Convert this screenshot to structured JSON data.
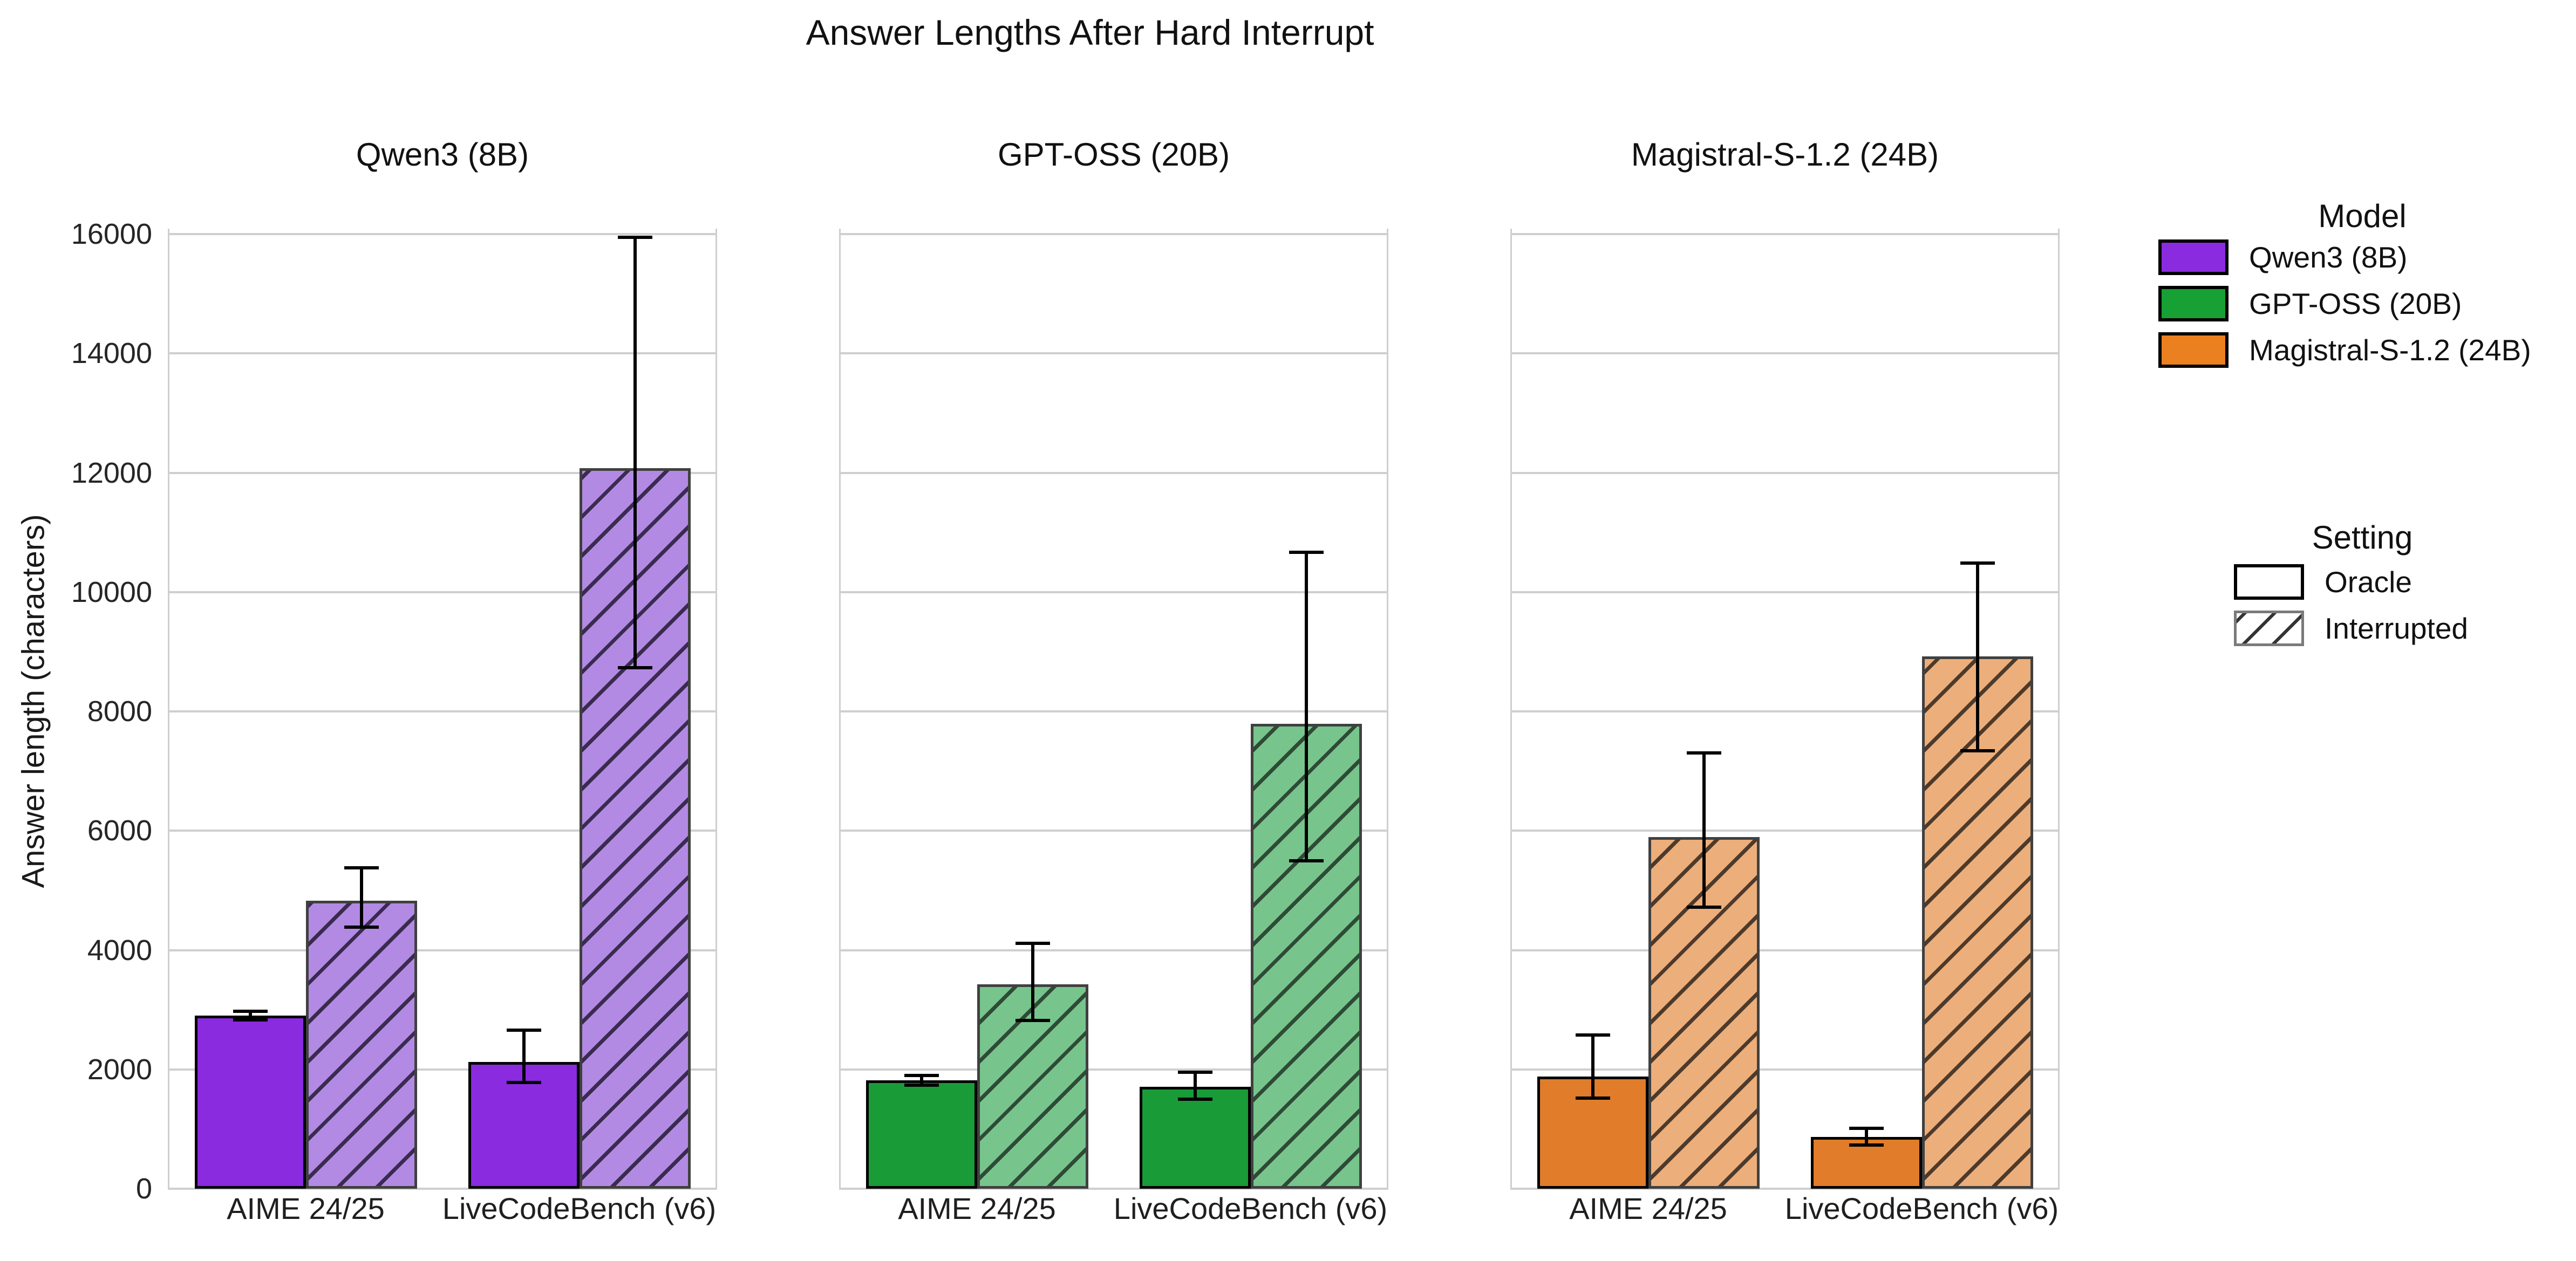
{
  "title": "Answer Lengths After Hard Interrupt",
  "ylabel": "Answer length (characters)",
  "legend": {
    "model_title": "Model",
    "models": [
      {
        "label": "Qwen3 (8B)",
        "color": "#8a2be0"
      },
      {
        "label": "GPT-OSS (20B)",
        "color": "#17a033"
      },
      {
        "label": "Magistral-S-1.2 (24B)",
        "color": "#ea8020"
      }
    ],
    "setting_title": "Setting",
    "settings": [
      {
        "label": "Oracle",
        "hatched": false
      },
      {
        "label": "Interrupted",
        "hatched": true
      }
    ]
  },
  "chart_data": {
    "type": "bar",
    "title": "Answer Lengths After Hard Interrupt",
    "ylabel": "Answer length (characters)",
    "ylim": [
      0,
      16000
    ],
    "ytick_step": 2000,
    "grid": "horizontal",
    "legend_position": "right",
    "categories": [
      "AIME 24/25",
      "LiveCodeBench (v6)"
    ],
    "settings": [
      "Oracle",
      "Interrupted"
    ],
    "panels": [
      {
        "title": "Qwen3 (8B)",
        "solid": "#8a2bdf",
        "light": "#b28ae4",
        "hatch_line": "#3a2b4f",
        "bars": [
          {
            "category": "AIME 24/25",
            "setting": "Oracle",
            "value": 2900,
            "err": [
              2830,
              2970
            ]
          },
          {
            "category": "AIME 24/25",
            "setting": "Interrupted",
            "value": 4830,
            "err": [
              4380,
              5380
            ]
          },
          {
            "category": "LiveCodeBench (v6)",
            "setting": "Oracle",
            "value": 2120,
            "err": [
              1780,
              2660
            ]
          },
          {
            "category": "LiveCodeBench (v6)",
            "setting": "Interrupted",
            "value": 12080,
            "err": [
              8730,
              15950
            ]
          }
        ]
      },
      {
        "title": "GPT-OSS (20B)",
        "solid": "#199b38",
        "light": "#77c58c",
        "hatch_line": "#2f4a36",
        "bars": [
          {
            "category": "AIME 24/25",
            "setting": "Oracle",
            "value": 1820,
            "err": [
              1740,
              1900
            ]
          },
          {
            "category": "AIME 24/25",
            "setting": "Interrupted",
            "value": 3430,
            "err": [
              2820,
              4110
            ]
          },
          {
            "category": "LiveCodeBench (v6)",
            "setting": "Oracle",
            "value": 1710,
            "err": [
              1500,
              1950
            ]
          },
          {
            "category": "LiveCodeBench (v6)",
            "setting": "Interrupted",
            "value": 7790,
            "err": [
              5500,
              10670
            ]
          }
        ]
      },
      {
        "title": "Magistral-S-1.2 (24B)",
        "solid": "#e07c2a",
        "light": "#ecae7b",
        "hatch_line": "#4d3a2a",
        "bars": [
          {
            "category": "AIME 24/25",
            "setting": "Oracle",
            "value": 1880,
            "err": [
              1520,
              2580
            ]
          },
          {
            "category": "AIME 24/25",
            "setting": "Interrupted",
            "value": 5890,
            "err": [
              4720,
              7300
            ]
          },
          {
            "category": "LiveCodeBench (v6)",
            "setting": "Oracle",
            "value": 870,
            "err": [
              730,
              1010
            ]
          },
          {
            "category": "LiveCodeBench (v6)",
            "setting": "Interrupted",
            "value": 8920,
            "err": [
              7340,
              10490
            ]
          }
        ]
      }
    ]
  }
}
